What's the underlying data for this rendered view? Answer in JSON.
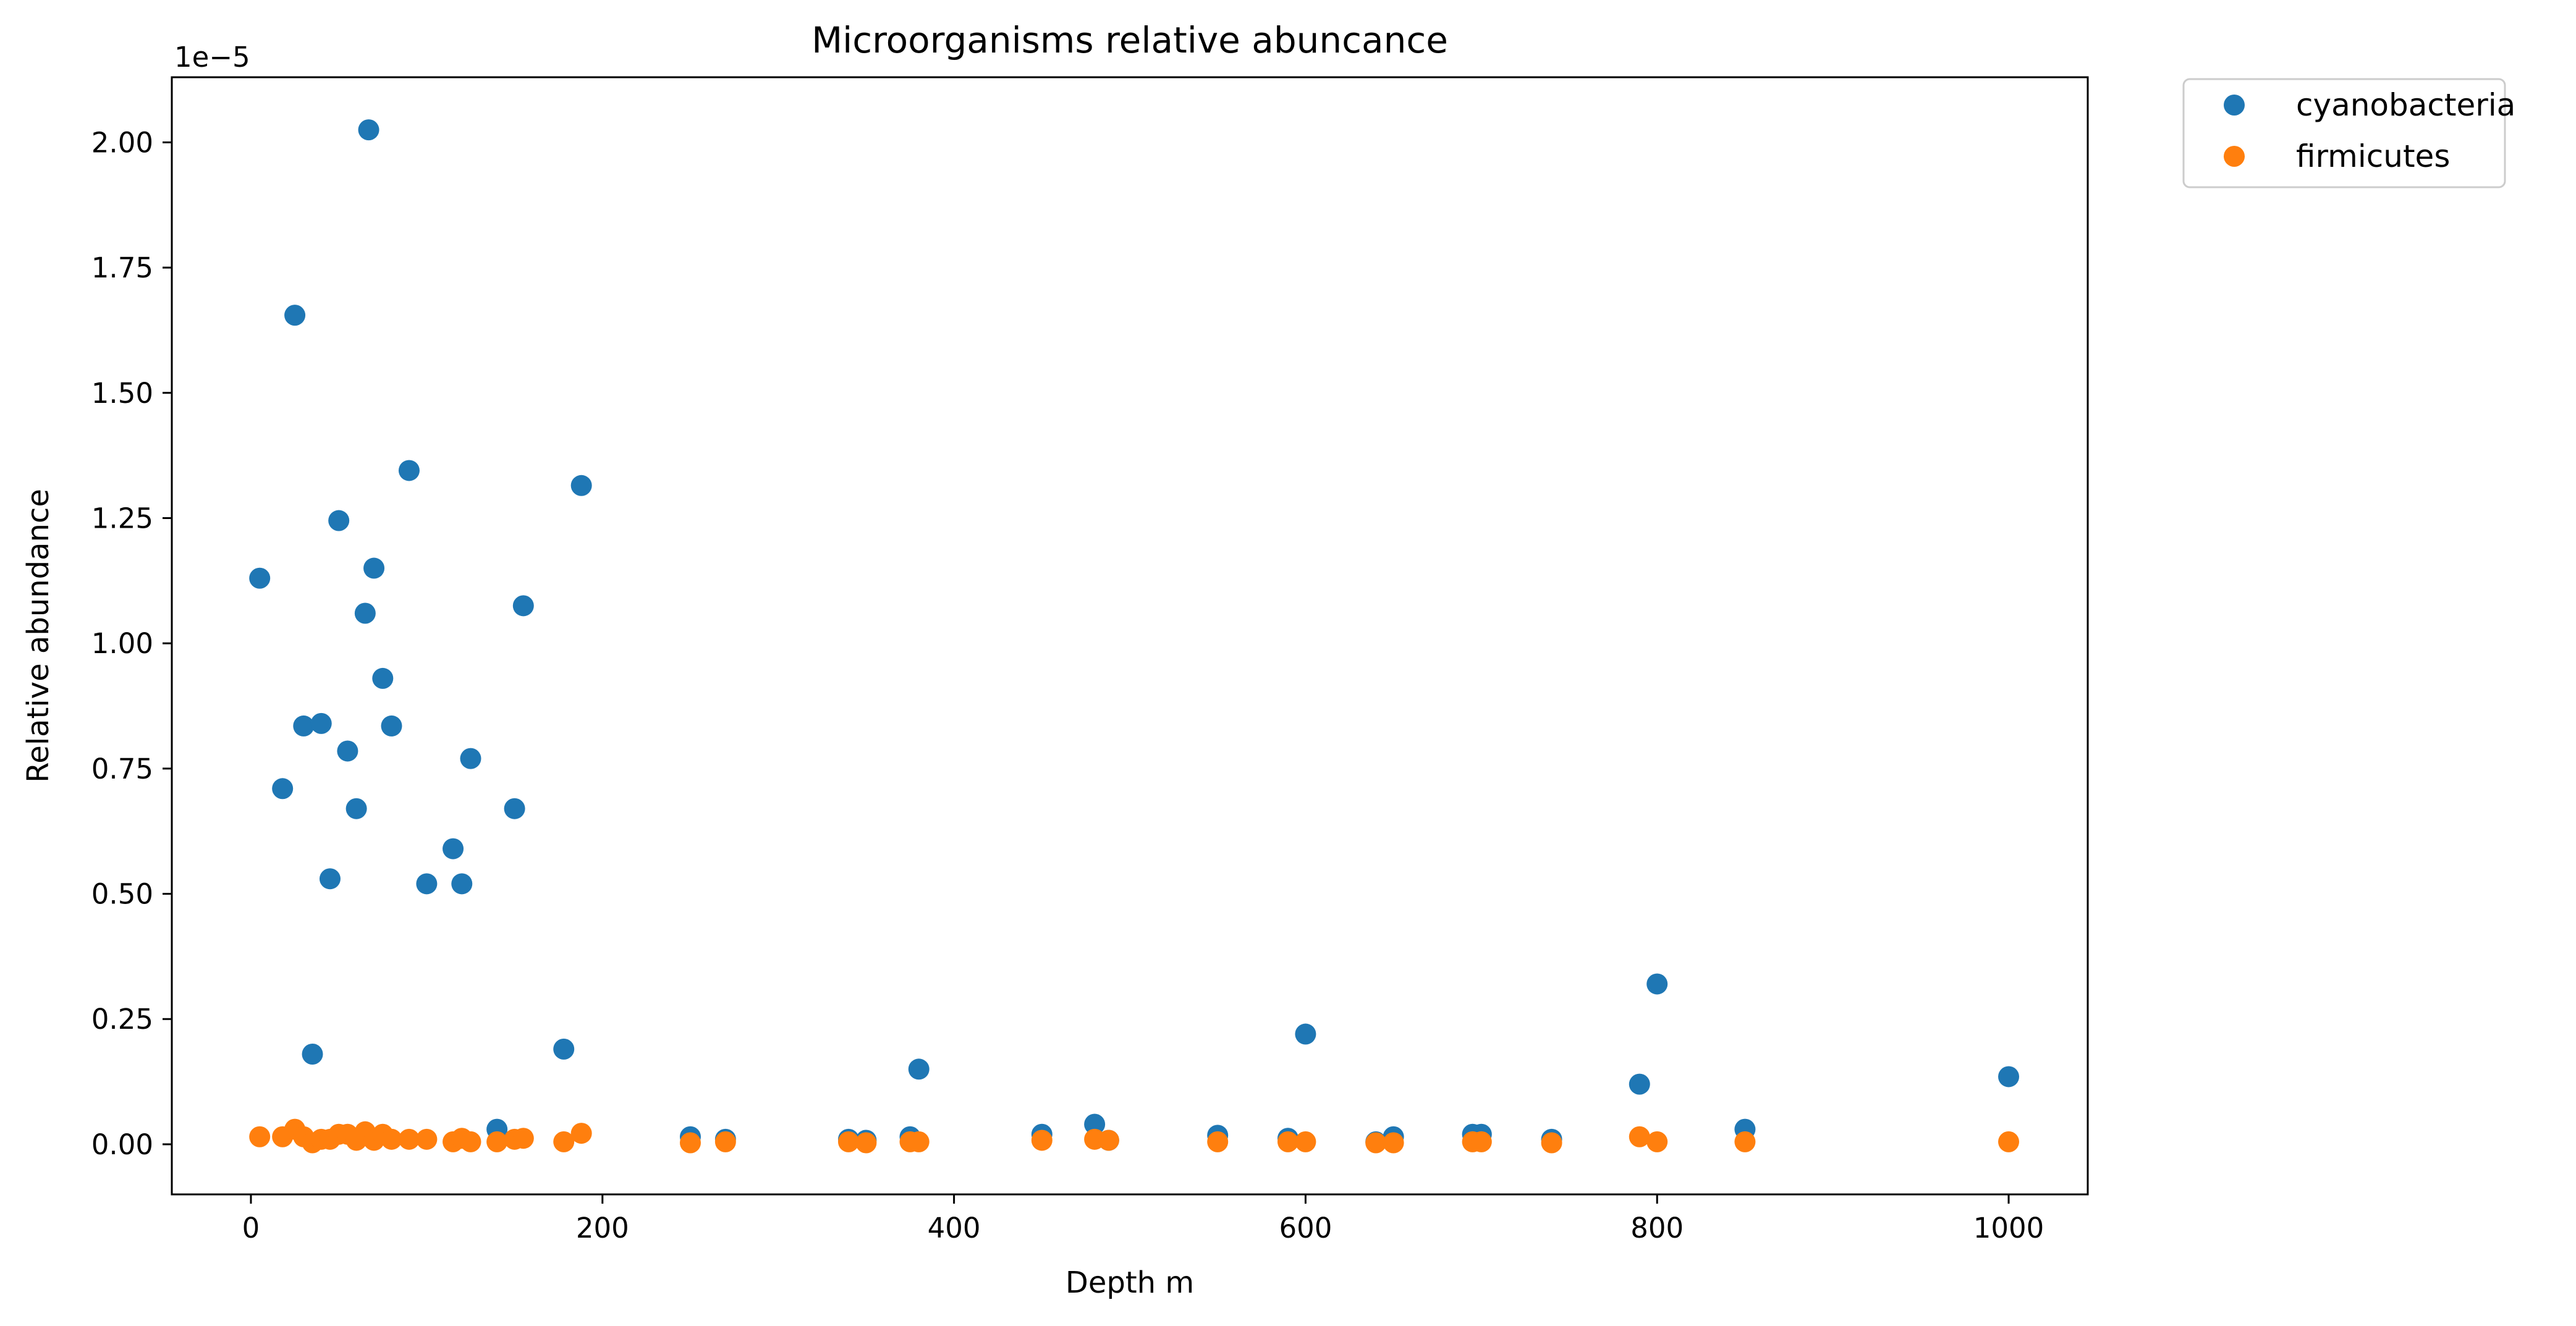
{
  "chart_data": {
    "type": "scatter",
    "title": "Microorganisms relative abuncance",
    "xlabel": "Depth m",
    "ylabel": "Relative abundance",
    "y_offset_label": "1e−5",
    "y_scale_exponent": -5,
    "xlim": [
      -45,
      1045
    ],
    "ylim": [
      -0.1,
      2.13
    ],
    "xticks": [
      0,
      200,
      400,
      600,
      800,
      1000
    ],
    "xtick_labels": [
      "0",
      "200",
      "400",
      "600",
      "800",
      "1000"
    ],
    "yticks": [
      0.0,
      0.25,
      0.5,
      0.75,
      1.0,
      1.25,
      1.5,
      1.75,
      2.0
    ],
    "ytick_labels": [
      "0.00",
      "0.25",
      "0.50",
      "0.75",
      "1.00",
      "1.25",
      "1.50",
      "1.75",
      "2.00"
    ],
    "grid": false,
    "legend_position": "outside-top-right",
    "series": [
      {
        "name": "cyanobacteria",
        "color": "#1f77b4",
        "points": [
          [
            5,
            1.13
          ],
          [
            18,
            0.71
          ],
          [
            25,
            1.655
          ],
          [
            30,
            0.835
          ],
          [
            35,
            0.18
          ],
          [
            40,
            0.84
          ],
          [
            45,
            0.53
          ],
          [
            50,
            1.245
          ],
          [
            55,
            0.785
          ],
          [
            60,
            0.67
          ],
          [
            65,
            1.06
          ],
          [
            67,
            2.025
          ],
          [
            70,
            1.15
          ],
          [
            75,
            0.93
          ],
          [
            80,
            0.835
          ],
          [
            90,
            1.345
          ],
          [
            100,
            0.52
          ],
          [
            115,
            0.59
          ],
          [
            120,
            0.52
          ],
          [
            125,
            0.77
          ],
          [
            140,
            0.03
          ],
          [
            150,
            0.67
          ],
          [
            155,
            1.075
          ],
          [
            178,
            0.19
          ],
          [
            188,
            1.315
          ],
          [
            250,
            0.015
          ],
          [
            270,
            0.01
          ],
          [
            340,
            0.01
          ],
          [
            350,
            0.008
          ],
          [
            375,
            0.015
          ],
          [
            380,
            0.15
          ],
          [
            450,
            0.02
          ],
          [
            480,
            0.04
          ],
          [
            488,
            0.008
          ],
          [
            550,
            0.018
          ],
          [
            590,
            0.012
          ],
          [
            600,
            0.22
          ],
          [
            640,
            0.005
          ],
          [
            650,
            0.015
          ],
          [
            695,
            0.02
          ],
          [
            700,
            0.02
          ],
          [
            740,
            0.01
          ],
          [
            790,
            0.12
          ],
          [
            800,
            0.32
          ],
          [
            850,
            0.03
          ],
          [
            1000,
            0.135
          ]
        ]
      },
      {
        "name": "firmicutes",
        "color": "#ff7f0e",
        "points": [
          [
            5,
            0.015
          ],
          [
            18,
            0.015
          ],
          [
            25,
            0.03
          ],
          [
            30,
            0.015
          ],
          [
            35,
            0.003
          ],
          [
            40,
            0.01
          ],
          [
            45,
            0.01
          ],
          [
            50,
            0.02
          ],
          [
            55,
            0.02
          ],
          [
            60,
            0.008
          ],
          [
            65,
            0.025
          ],
          [
            70,
            0.008
          ],
          [
            75,
            0.02
          ],
          [
            80,
            0.01
          ],
          [
            90,
            0.01
          ],
          [
            100,
            0.01
          ],
          [
            115,
            0.005
          ],
          [
            120,
            0.012
          ],
          [
            125,
            0.005
          ],
          [
            140,
            0.005
          ],
          [
            150,
            0.01
          ],
          [
            155,
            0.012
          ],
          [
            178,
            0.005
          ],
          [
            188,
            0.022
          ],
          [
            250,
            0.003
          ],
          [
            270,
            0.005
          ],
          [
            340,
            0.005
          ],
          [
            350,
            0.003
          ],
          [
            375,
            0.005
          ],
          [
            380,
            0.005
          ],
          [
            450,
            0.008
          ],
          [
            480,
            0.01
          ],
          [
            488,
            0.008
          ],
          [
            550,
            0.005
          ],
          [
            590,
            0.005
          ],
          [
            600,
            0.005
          ],
          [
            640,
            0.003
          ],
          [
            650,
            0.003
          ],
          [
            695,
            0.005
          ],
          [
            700,
            0.005
          ],
          [
            740,
            0.003
          ],
          [
            790,
            0.015
          ],
          [
            800,
            0.005
          ],
          [
            850,
            0.005
          ],
          [
            1000,
            0.005
          ]
        ]
      }
    ]
  }
}
